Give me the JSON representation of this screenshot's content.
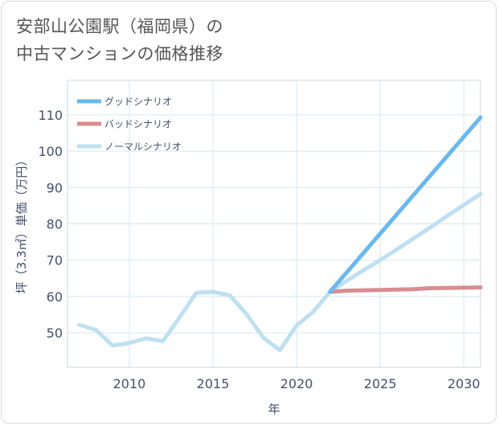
{
  "title_line1": "安部山公園駅（福岡県）の",
  "title_line2": "中古マンションの価格推移",
  "chart_data": {
    "type": "line",
    "xlabel": "年",
    "ylabel": "坪（3.3㎡）単価（万円）",
    "xlim": [
      2006.3,
      2031
    ],
    "ylim": [
      40.5,
      119.5
    ],
    "x_ticks": [
      2010,
      2015,
      2020,
      2025,
      2030
    ],
    "y_ticks": [
      50,
      60,
      70,
      80,
      90,
      100,
      110
    ],
    "legend_position": "top-left",
    "series": [
      {
        "name": "グッドシナリオ",
        "color": "#6ab8ee",
        "width": 5,
        "x": [
          2022,
          2031
        ],
        "y": [
          61.3,
          109.3
        ]
      },
      {
        "name": "バッドシナリオ",
        "color": "#d98c91",
        "width": 5,
        "x": [
          2022,
          2023,
          2025,
          2027,
          2028,
          2031
        ],
        "y": [
          61.3,
          61.6,
          61.8,
          62.0,
          62.3,
          62.5
        ]
      },
      {
        "name": "ノーマルシナリオ",
        "color": "#bfe0f0",
        "width": 5,
        "x": [
          2007,
          2008,
          2009,
          2010,
          2011,
          2012,
          2013,
          2014,
          2015,
          2016,
          2017,
          2018,
          2019,
          2020,
          2021,
          2022,
          2023,
          2024,
          2025,
          2026,
          2027,
          2028,
          2029,
          2030,
          2031
        ],
        "y": [
          52.2,
          50.8,
          46.5,
          47.2,
          48.5,
          47.7,
          54.2,
          61.0,
          61.3,
          60.3,
          55.2,
          48.7,
          45.2,
          52.0,
          55.8,
          61.3,
          64.3,
          67.2,
          70.0,
          73.0,
          76.0,
          79.0,
          82.2,
          85.2,
          88.2
        ]
      }
    ]
  }
}
